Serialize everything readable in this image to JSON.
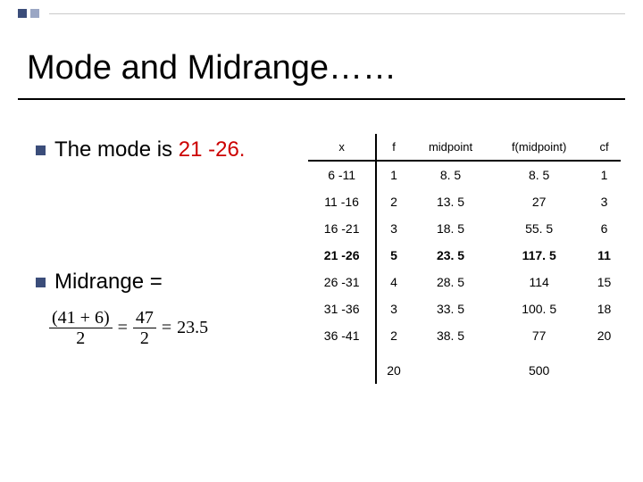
{
  "title": "Mode and Midrange……",
  "bullet1_prefix": "The mode is ",
  "bullet1_value": "21 -26.",
  "bullet2": "Midrange =",
  "formula": {
    "num1": "(41 + 6)",
    "den1": "2",
    "eq1": "=",
    "num2": "47",
    "den2": "2",
    "eq2": "=",
    "result": "23.5"
  },
  "table": {
    "headers": [
      "x",
      "f",
      "midpoint",
      "f(midpoint)",
      "cf"
    ],
    "rows": [
      {
        "x": "6 -11",
        "f": "1",
        "mid": "8. 5",
        "fm": "8. 5",
        "cf": "1",
        "bold": false
      },
      {
        "x": "11 -16",
        "f": "2",
        "mid": "13. 5",
        "fm": "27",
        "cf": "3",
        "bold": false
      },
      {
        "x": "16 -21",
        "f": "3",
        "mid": "18. 5",
        "fm": "55. 5",
        "cf": "6",
        "bold": false
      },
      {
        "x": "21 -26",
        "f": "5",
        "mid": "23. 5",
        "fm": "117. 5",
        "cf": "11",
        "bold": true
      },
      {
        "x": "26 -31",
        "f": "4",
        "mid": "28. 5",
        "fm": "114",
        "cf": "15",
        "bold": false
      },
      {
        "x": "31 -36",
        "f": "3",
        "mid": "33. 5",
        "fm": "100. 5",
        "cf": "18",
        "bold": false
      },
      {
        "x": "36 -41",
        "f": "2",
        "mid": "38. 5",
        "fm": "77",
        "cf": "20",
        "bold": false
      }
    ],
    "totals": {
      "f": "20",
      "fm": "500"
    }
  },
  "colors": {
    "accent_dark": "#3b4d7a",
    "accent_light": "#9aa6c4",
    "mode_red": "#cc0000"
  }
}
